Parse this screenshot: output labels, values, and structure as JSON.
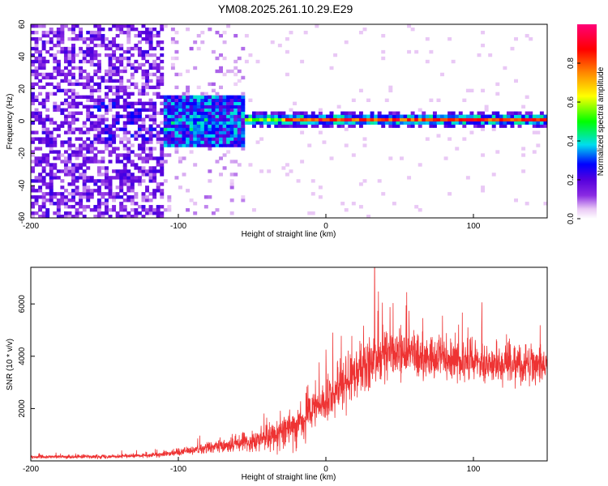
{
  "title": "YM08.2025.261.10.29.E29",
  "chart_data": [
    {
      "type": "heatmap",
      "xlabel": "Height of straight line (km)",
      "ylabel": "Frequency (Hz)",
      "xlim": [
        -200,
        150
      ],
      "ylim": [
        -60,
        60
      ],
      "x_ticks": [
        -200,
        -100,
        0,
        100
      ],
      "x_tick_labels": [
        "-200",
        "-100",
        "0",
        "100"
      ],
      "y_ticks": [
        -60,
        -40,
        -20,
        0,
        20,
        40,
        60
      ],
      "y_tick_labels": [
        "-60",
        "-40",
        "-20",
        "0",
        "20",
        "40",
        "60"
      ],
      "colorbar": {
        "label": "Normalized spectral amplitude",
        "range": [
          0,
          1
        ],
        "ticks": [
          0.0,
          0.2,
          0.4,
          0.6,
          0.8
        ],
        "tick_labels": [
          "0.0",
          "0.2",
          "0.4",
          "0.6",
          "0.8"
        ]
      },
      "structure": {
        "noise_region_km": [
          -200,
          -110
        ],
        "sparse_region_km": [
          -110,
          -55
        ],
        "band_center_hz": 1,
        "band_start_km": -55
      }
    },
    {
      "type": "line",
      "xlabel": "Height of straight line (km)",
      "ylabel": "SNR (10 * v/v)",
      "xlim": [
        -200,
        150
      ],
      "ylim": [
        0,
        7400
      ],
      "x_ticks": [
        -200,
        -100,
        0,
        100
      ],
      "x_tick_labels": [
        "-200",
        "-100",
        "0",
        "100"
      ],
      "y_ticks": [
        2000,
        4000,
        6000
      ],
      "y_tick_labels": [
        "2000",
        "4000",
        "6000"
      ],
      "color": "#ee3333",
      "envelope": {
        "x": [
          -200,
          -150,
          -120,
          -100,
          -80,
          -60,
          -40,
          -20,
          0,
          20,
          40,
          60,
          80,
          100,
          120,
          150
        ],
        "mean": [
          150,
          170,
          200,
          350,
          500,
          650,
          900,
          1400,
          2300,
          3400,
          4100,
          4000,
          3900,
          3800,
          3700,
          3700
        ],
        "spread": [
          100,
          110,
          130,
          250,
          350,
          500,
          800,
          1200,
          1400,
          1500,
          1400,
          1300,
          1200,
          1200,
          1200,
          1200
        ],
        "peak": {
          "x": 33,
          "y": 7400
        }
      }
    }
  ]
}
